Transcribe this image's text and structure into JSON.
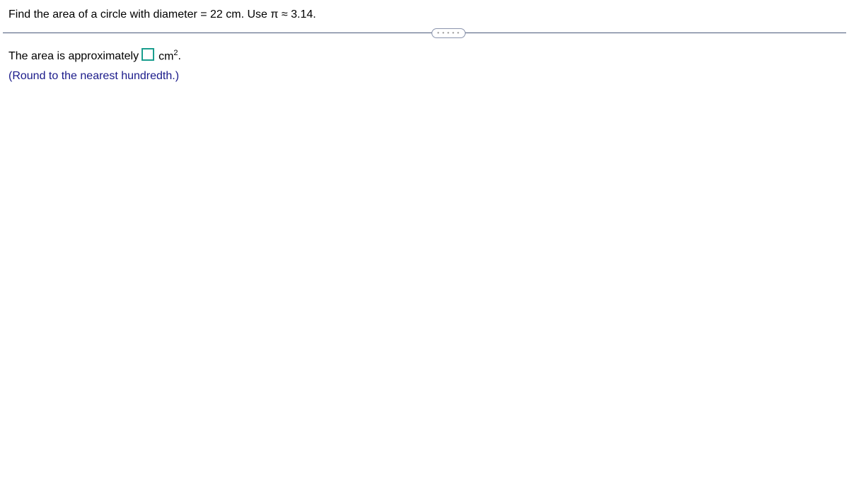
{
  "question": {
    "prompt": "Find the area of a circle with diameter = 22 cm. Use π ≈ 3.14."
  },
  "answer": {
    "prefix": "The area is approximately",
    "input_value": "",
    "unit_base": "cm",
    "unit_exponent": "2",
    "suffix": ".",
    "instruction": "(Round to the nearest hundredth.)"
  },
  "colors": {
    "input_border": "#1a9e8e",
    "instruction_text": "#1a1a8a",
    "divider": "#4a5a7a"
  }
}
